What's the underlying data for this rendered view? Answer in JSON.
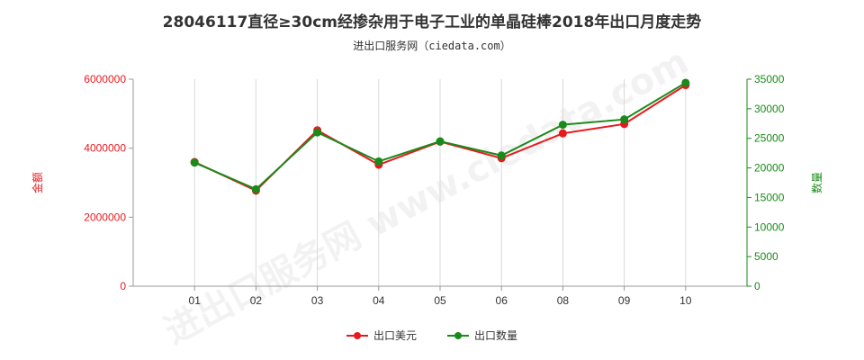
{
  "chart_data": {
    "type": "line",
    "title": "28046117直径≥30cm经掺杂用于电子工业的单晶硅棒2018年出口月度走势",
    "subtitle": "进出口服务网（ciedata.com）",
    "watermark": "进出口服务网 www.ciedata.com",
    "categories": [
      "01",
      "02",
      "03",
      "04",
      "05",
      "06",
      "08",
      "09",
      "10"
    ],
    "ylabel_left": "金额",
    "ylabel_right": "数量",
    "ylim_left": [
      0,
      6000000
    ],
    "yticks_left": [
      0,
      2000000,
      4000000,
      6000000
    ],
    "ylim_right": [
      0,
      35000
    ],
    "yticks_right": [
      0,
      5000,
      10000,
      15000,
      20000,
      25000,
      30000,
      35000
    ],
    "series": [
      {
        "name": "出口美元",
        "axis": "left",
        "color": "#e8191e",
        "values": [
          3600000,
          2770000,
          4520000,
          3520000,
          4190000,
          3710000,
          4430000,
          4700000,
          5830000
        ]
      },
      {
        "name": "出口数量",
        "axis": "right",
        "color": "#1a8a1a",
        "values": [
          20900,
          16400,
          26000,
          21100,
          24500,
          22100,
          27300,
          28200,
          34400
        ]
      }
    ],
    "grid": true,
    "legend_position": "bottom-center"
  }
}
